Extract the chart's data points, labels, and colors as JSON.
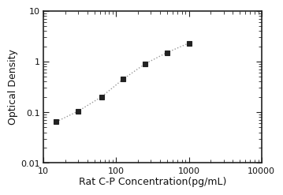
{
  "x_values": [
    15,
    30,
    62.5,
    125,
    250,
    500,
    1000
  ],
  "y_values": [
    0.065,
    0.105,
    0.2,
    0.45,
    0.9,
    1.5,
    2.3
  ],
  "xlabel": "Rat C-P Concentration(pg/mL)",
  "ylabel": "Optical Density",
  "xlim": [
    10,
    10000
  ],
  "ylim": [
    0.01,
    10
  ],
  "x_ticks": [
    10,
    100,
    1000,
    10000
  ],
  "y_ticks": [
    0.01,
    0.1,
    1,
    10
  ],
  "marker": "s",
  "marker_color": "#222222",
  "line_color": "#999999",
  "line_style": ":",
  "marker_size": 5,
  "line_width": 1.0,
  "xlabel_fontsize": 9,
  "ylabel_fontsize": 9,
  "tick_fontsize": 8,
  "bg_color": "#ffffff",
  "spine_color": "#222222",
  "spine_linewidth": 1.2
}
